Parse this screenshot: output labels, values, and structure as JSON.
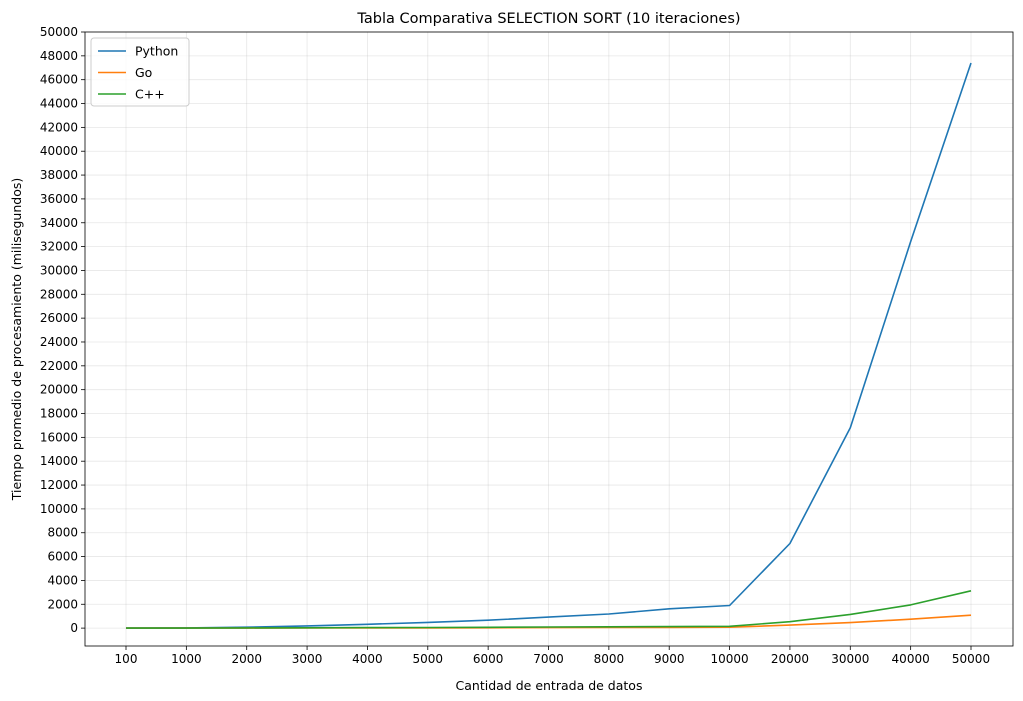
{
  "chart_data": {
    "type": "line",
    "title": "Tabla Comparativa SELECTION SORT (10 iteraciones)",
    "xlabel": "Cantidad de entrada de datos",
    "ylabel": "Tiempo promedio de procesamiento (milisegundos)",
    "categories": [
      "100",
      "1000",
      "2000",
      "3000",
      "4000",
      "5000",
      "6000",
      "7000",
      "8000",
      "9000",
      "10000",
      "20000",
      "30000",
      "40000",
      "50000"
    ],
    "yticks": [
      "0",
      "2000",
      "4000",
      "6000",
      "8000",
      "10000",
      "12000",
      "14000",
      "16000",
      "18000",
      "20000",
      "22000",
      "24000",
      "26000",
      "28000",
      "30000",
      "32000",
      "34000",
      "36000",
      "38000",
      "40000",
      "42000",
      "44000",
      "46000",
      "48000",
      "50000"
    ],
    "ylim": [
      -1500,
      50000
    ],
    "grid": true,
    "legend_position": "top-left",
    "series": [
      {
        "name": "Python",
        "color": "#1f77b4",
        "values": [
          0,
          20,
          80,
          190,
          320,
          480,
          660,
          920,
          1180,
          1620,
          1900,
          7100,
          16800,
          32400,
          47400
        ]
      },
      {
        "name": "Go",
        "color": "#ff7f0e",
        "values": [
          0,
          2,
          5,
          10,
          15,
          22,
          30,
          40,
          50,
          62,
          75,
          250,
          460,
          750,
          1080
        ]
      },
      {
        "name": "C++",
        "color": "#2ca02c",
        "values": [
          0,
          5,
          15,
          25,
          40,
          55,
          70,
          90,
          110,
          130,
          150,
          540,
          1150,
          1950,
          3130
        ]
      }
    ]
  }
}
